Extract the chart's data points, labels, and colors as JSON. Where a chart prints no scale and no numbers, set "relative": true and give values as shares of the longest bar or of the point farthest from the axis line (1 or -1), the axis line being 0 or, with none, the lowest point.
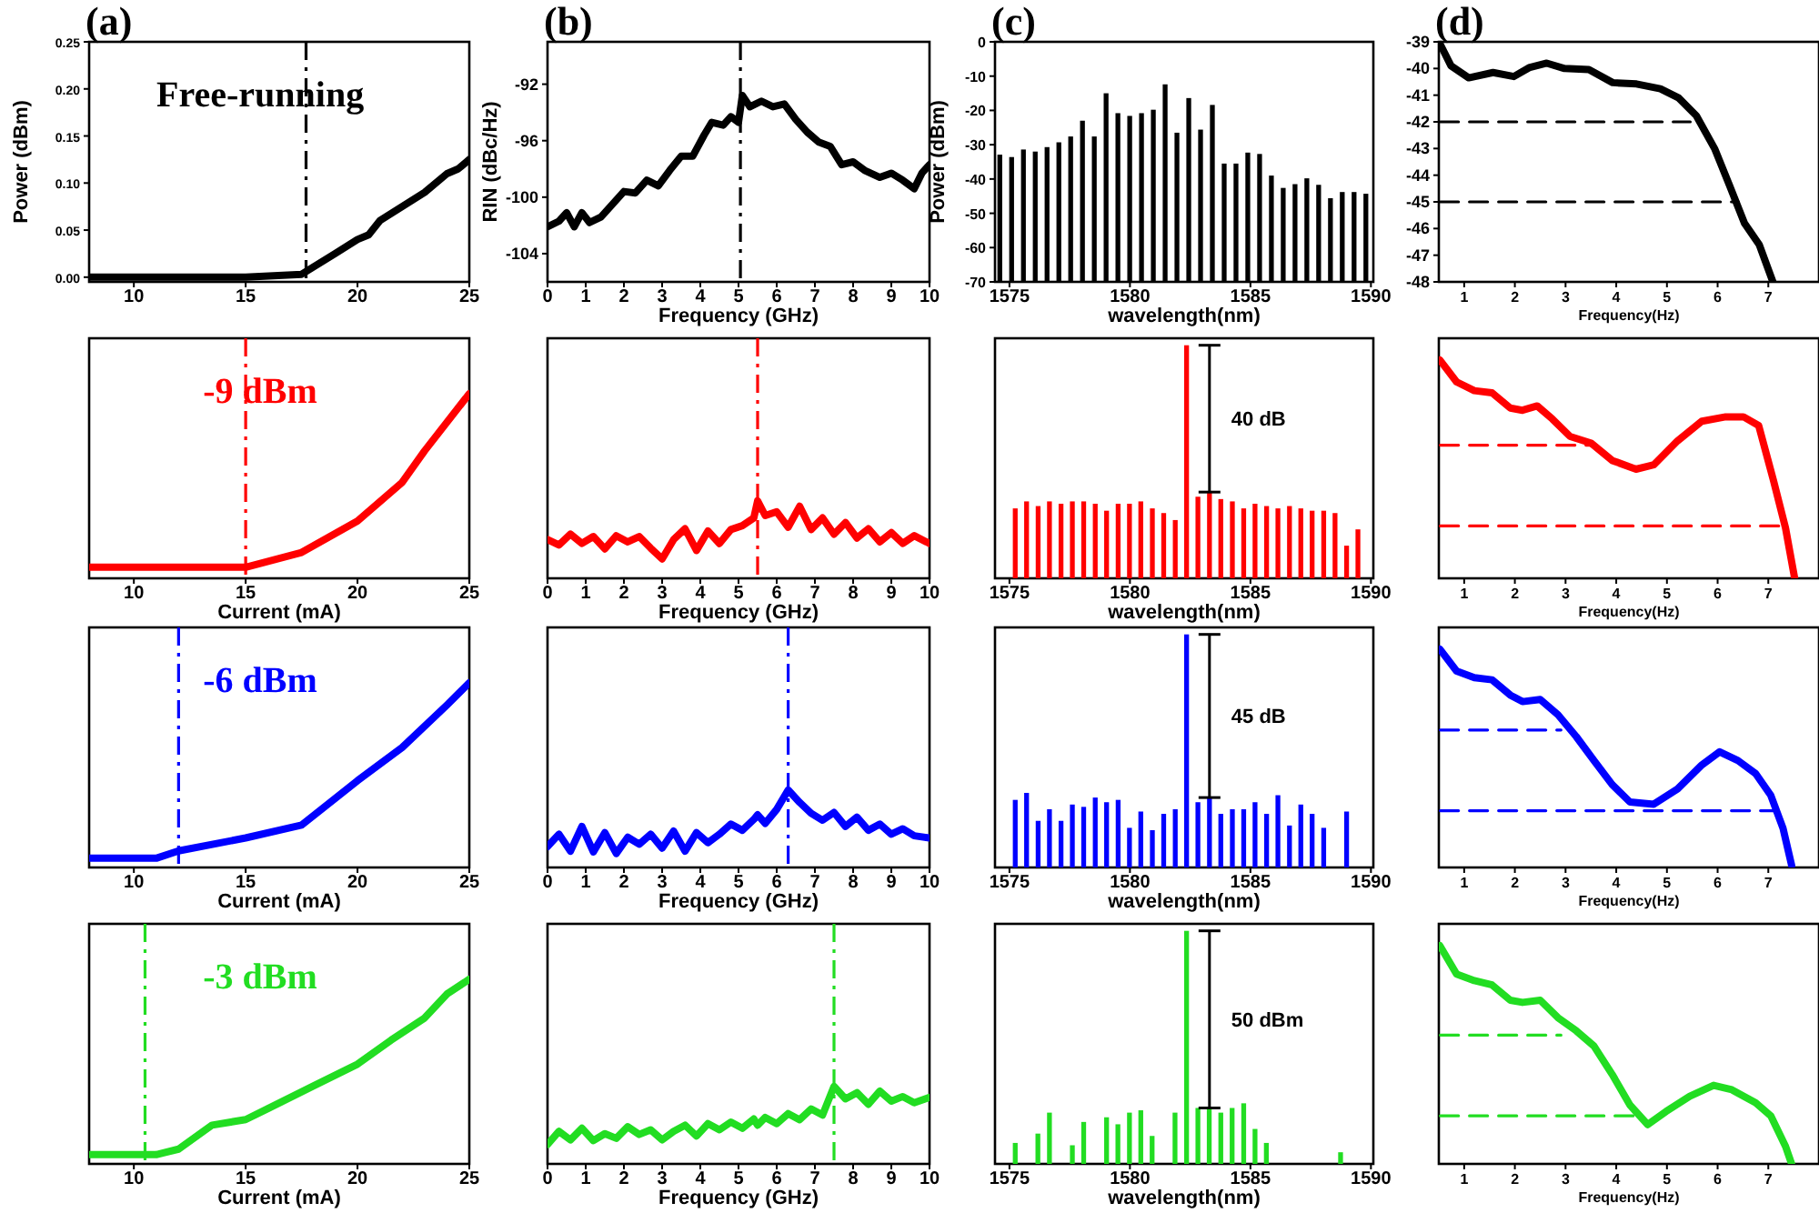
{
  "chart_data": [
    {
      "type": "line",
      "title": "(a)",
      "ylabel": "Power (dBm)",
      "xlim": [
        8,
        25
      ],
      "xticks": [
        10,
        15,
        20,
        25
      ],
      "ylim": [
        -0.005,
        0.25
      ],
      "yticks": [
        {
          "value": 0,
          "label": "0.00"
        },
        {
          "value": 0.05,
          "label": "0.05"
        },
        {
          "value": 0.1,
          "label": "0.10"
        },
        {
          "value": 0.15,
          "label": "0.15"
        },
        {
          "value": 0.2,
          "label": "0.20"
        },
        {
          "value": 0.25,
          "label": "0.25"
        }
      ],
      "annotations": [
        "Free-running"
      ],
      "ref_lines": [
        {
          "axis": "x",
          "value": 17.7,
          "color": "#000000",
          "line_style": "dashdot"
        }
      ],
      "series": [
        {
          "color": "#000000",
          "x": [
            8,
            12,
            15,
            17.5,
            19,
            20,
            20.5,
            21,
            22,
            23,
            24,
            24.5,
            25
          ],
          "values": [
            0,
            0,
            0,
            0.003,
            0.025,
            0.04,
            0.045,
            0.06,
            0.075,
            0.09,
            0.11,
            0.115,
            0.125
          ]
        }
      ]
    },
    {
      "type": "line",
      "title": "(b)",
      "ylabel": "RIN (dBc/Hz)",
      "xlabel": "Frequency (GHz)",
      "xlim": [
        0,
        10
      ],
      "xticks": [
        0,
        1,
        2,
        3,
        4,
        5,
        6,
        7,
        8,
        9,
        10
      ],
      "ylim": [
        -106,
        -89
      ],
      "yticks": [
        -92,
        -96,
        -100,
        -104
      ],
      "ref_lines": [
        {
          "axis": "x",
          "value": 5.05,
          "color": "#000000",
          "line_style": "dashdot"
        }
      ],
      "series": [
        {
          "color": "#000000",
          "x": [
            0,
            0.3,
            0.5,
            0.7,
            0.9,
            1.1,
            1.4,
            1.7,
            2,
            2.3,
            2.6,
            2.9,
            3.2,
            3.5,
            3.8,
            4.1,
            4.3,
            4.6,
            4.8,
            5,
            5.1,
            5.3,
            5.6,
            5.9,
            6.2,
            6.5,
            6.8,
            7.1,
            7.4,
            7.7,
            8,
            8.3,
            8.7,
            9,
            9.3,
            9.6,
            9.8,
            10
          ],
          "values": [
            -102.1,
            -101.7,
            -101.1,
            -102.1,
            -101.1,
            -101.8,
            -101.4,
            -100.5,
            -99.6,
            -99.7,
            -98.8,
            -99.2,
            -98.1,
            -97.1,
            -97.1,
            -95.6,
            -94.7,
            -94.9,
            -94.3,
            -94.7,
            -92.8,
            -93.6,
            -93.2,
            -93.6,
            -93.4,
            -94.5,
            -95.4,
            -96.1,
            -96.4,
            -97.7,
            -97.5,
            -98.1,
            -98.6,
            -98.3,
            -98.8,
            -99.4,
            -98.3,
            -97.7
          ]
        }
      ]
    },
    {
      "type": "bar",
      "title": "(c)",
      "ylabel": "Power (dBm)",
      "xlabel": "wavelength(nm)",
      "xlim": [
        1574.4,
        1590.1
      ],
      "xticks": [
        1575,
        1580,
        1585,
        1590
      ],
      "ylim": [
        -70,
        0
      ],
      "yticks": [
        0,
        -10,
        -20,
        -30,
        -40,
        -50,
        -60,
        -70
      ],
      "series": [
        {
          "color": "#000000",
          "x": [
            1574.6,
            1575.09,
            1575.58,
            1576.07,
            1576.56,
            1577.05,
            1577.54,
            1578.03,
            1578.52,
            1579.01,
            1579.5,
            1579.99,
            1580.48,
            1580.97,
            1581.46,
            1581.95,
            1582.44,
            1582.93,
            1583.42,
            1583.91,
            1584.4,
            1584.89,
            1585.38,
            1585.87,
            1586.36,
            1586.85,
            1587.34,
            1587.83,
            1588.32,
            1588.81,
            1589.3,
            1589.79
          ],
          "base": [
            -70,
            -70,
            -70,
            -70,
            -70,
            -70,
            -70,
            -70,
            -70,
            -70,
            -70,
            -70,
            -70,
            -70,
            -70,
            -70,
            -70,
            -70,
            -70,
            -70,
            -70,
            -70,
            -70,
            -70,
            -70,
            -70,
            -70,
            -70,
            -70,
            -70,
            -70,
            -70
          ],
          "values": [
            37.1,
            36.4,
            38.6,
            38,
            39.3,
            40.7,
            42.4,
            47,
            42.4,
            55,
            49.2,
            48.4,
            49.2,
            50.2,
            57.6,
            43.5,
            53.6,
            44.4,
            51.6,
            34.5,
            34.5,
            37.7,
            37.3,
            31,
            27.4,
            28.5,
            30.2,
            28.3,
            24.4,
            26.2,
            26.2,
            25.7
          ]
        }
      ]
    },
    {
      "type": "line",
      "title": "(d)",
      "xlabel": "Frequency(Hz)",
      "xlim": [
        0.5,
        8
      ],
      "xticks": [
        1,
        2,
        3,
        4,
        5,
        6,
        7
      ],
      "ylim": [
        -48,
        -39
      ],
      "yticks": [
        -39,
        -40,
        -41,
        -42,
        -43,
        -44,
        -45,
        -46,
        -47,
        -48
      ],
      "series": [
        {
          "color": "#000000",
          "x": [
            0.53,
            0.74,
            1.09,
            1.57,
            1.98,
            2.28,
            2.63,
            2.98,
            3.46,
            3.93,
            4.4,
            4.87,
            5.23,
            5.58,
            5.94,
            6.23,
            6.53,
            6.82,
            7.09
          ],
          "values": [
            -39.1,
            -39.9,
            -40.35,
            -40.15,
            -40.3,
            -39.97,
            -39.8,
            -40,
            -40.04,
            -40.53,
            -40.58,
            -40.76,
            -41.1,
            -41.77,
            -43,
            -44.36,
            -45.8,
            -46.6,
            -48
          ]
        },
        {
          "color": "#000000",
          "line_style": "dashed",
          "x": [
            0.53,
            5.46
          ],
          "values": [
            -42,
            -42
          ]
        },
        {
          "color": "#000000",
          "line_style": "dashed",
          "x": [
            0.53,
            6.41
          ],
          "values": [
            -45,
            -45
          ]
        }
      ]
    },
    {
      "type": "line",
      "relative": true,
      "xlabel": "Current (mA)",
      "xlim": [
        8,
        25
      ],
      "xticks": [
        10,
        15,
        20,
        25
      ],
      "tick_labels": "x",
      "annotations": [
        "-9 dBm"
      ],
      "ref_lines": [
        {
          "axis": "x",
          "value": 15,
          "color": "#ff0000",
          "line_style": "dashdot"
        }
      ],
      "series": [
        {
          "color": "#ff0000",
          "x": [
            8,
            12,
            15,
            17.5,
            20,
            22,
            23,
            25
          ],
          "values": [
            0.06,
            0.06,
            0.06,
            0.14,
            0.31,
            0.52,
            0.69,
            1
          ]
        }
      ]
    },
    {
      "type": "line",
      "relative": true,
      "xlabel": "Frequency (GHz)",
      "xlim": [
        0,
        10
      ],
      "xticks": [
        0,
        1,
        2,
        3,
        4,
        5,
        6,
        7,
        8,
        9,
        10
      ],
      "tick_labels": "x",
      "ref_lines": [
        {
          "axis": "x",
          "value": 5.5,
          "color": "#ff0000",
          "line_style": "dashdot"
        }
      ],
      "series": [
        {
          "color": "#ff0000",
          "x": [
            0,
            0.3,
            0.6,
            0.9,
            1.2,
            1.5,
            1.8,
            2.1,
            2.4,
            2.7,
            3,
            3.3,
            3.6,
            3.9,
            4.2,
            4.5,
            4.8,
            5.1,
            5.4,
            5.5,
            5.7,
            6,
            6.3,
            6.6,
            6.9,
            7.2,
            7.5,
            7.8,
            8.1,
            8.4,
            8.7,
            9,
            9.3,
            9.6,
            10
          ],
          "values": [
            0.5,
            0.43,
            0.57,
            0.45,
            0.54,
            0.38,
            0.55,
            0.47,
            0.54,
            0.39,
            0.25,
            0.5,
            0.64,
            0.36,
            0.61,
            0.45,
            0.63,
            0.68,
            0.78,
            1,
            0.81,
            0.86,
            0.66,
            0.93,
            0.63,
            0.78,
            0.57,
            0.72,
            0.52,
            0.64,
            0.47,
            0.59,
            0.45,
            0.55,
            0.45
          ]
        }
      ]
    },
    {
      "type": "bar",
      "relative": true,
      "xlabel": "wavelength(nm)",
      "xlim": [
        1574.4,
        1590.1
      ],
      "xticks": [
        1575,
        1580,
        1585,
        1590
      ],
      "tick_labels": "x",
      "annotations": [
        "40 dB"
      ],
      "series": [
        {
          "color": "#ff0000",
          "x": [
            1575.24,
            1575.71,
            1576.19,
            1576.66,
            1577.14,
            1577.61,
            1578.08,
            1578.56,
            1579.03,
            1579.51,
            1579.98,
            1580.45,
            1580.93,
            1581.4,
            1581.88,
            1582.35,
            1582.82,
            1583.3,
            1583.77,
            1584.25,
            1584.72,
            1585.19,
            1585.67,
            1586.14,
            1586.62,
            1587.09,
            1587.56,
            1588.04,
            1588.51,
            1588.99,
            1589.46
          ],
          "values": [
            0.3,
            0.33,
            0.31,
            0.33,
            0.32,
            0.33,
            0.33,
            0.32,
            0.29,
            0.32,
            0.32,
            0.33,
            0.3,
            0.28,
            0.25,
            1,
            0.35,
            0.37,
            0.34,
            0.33,
            0.3,
            0.32,
            0.31,
            0.3,
            0.31,
            0.3,
            0.29,
            0.29,
            0.28,
            0.14,
            0.21
          ]
        }
      ]
    },
    {
      "type": "line",
      "relative": true,
      "xlabel": "Frequency(Hz)",
      "xlim": [
        0.5,
        8
      ],
      "xticks": [
        1,
        2,
        3,
        4,
        5,
        6,
        7
      ],
      "tick_labels": "x",
      "series": [
        {
          "color": "#ff0000",
          "x": [
            0.52,
            0.85,
            1.2,
            1.55,
            1.91,
            2.15,
            2.44,
            2.74,
            3.09,
            3.5,
            3.92,
            4.39,
            4.74,
            5.21,
            5.69,
            6.16,
            6.51,
            6.81,
            7.1,
            7.34,
            7.52
          ],
          "values": [
            1,
            0.9,
            0.86,
            0.85,
            0.78,
            0.77,
            0.79,
            0.73,
            0.65,
            0.62,
            0.54,
            0.5,
            0.52,
            0.63,
            0.72,
            0.74,
            0.74,
            0.7,
            0.45,
            0.23,
            0
          ]
        },
        {
          "color": "#ff0000",
          "line_style": "dashed",
          "x": [
            0.53,
            3.56
          ],
          "values": [
            0.61,
            0.61
          ]
        },
        {
          "color": "#ff0000",
          "line_style": "dashed",
          "x": [
            0.53,
            7.28
          ],
          "values": [
            0.24,
            0.24
          ]
        }
      ]
    },
    {
      "type": "line",
      "relative": true,
      "xlabel": "Current (mA)",
      "xlim": [
        8,
        25
      ],
      "xticks": [
        10,
        15,
        20,
        25
      ],
      "tick_labels": "x",
      "annotations": [
        "-6 dBm"
      ],
      "ref_lines": [
        {
          "axis": "x",
          "value": 12,
          "color": "#0000ff",
          "line_style": "dashdot"
        }
      ],
      "series": [
        {
          "color": "#0000ff",
          "x": [
            8,
            11,
            12,
            15,
            17.5,
            20,
            22,
            24,
            25
          ],
          "values": [
            0.05,
            0.05,
            0.09,
            0.16,
            0.23,
            0.47,
            0.65,
            0.88,
            1
          ]
        }
      ]
    },
    {
      "type": "line",
      "relative": true,
      "xlabel": "Frequency (GHz)",
      "xlim": [
        0,
        10
      ],
      "xticks": [
        0,
        1,
        2,
        3,
        4,
        5,
        6,
        7,
        8,
        9,
        10
      ],
      "tick_labels": "x",
      "ref_lines": [
        {
          "axis": "x",
          "value": 6.3,
          "color": "#0000ff",
          "line_style": "dashdot"
        }
      ],
      "series": [
        {
          "color": "#0000ff",
          "x": [
            0,
            0.3,
            0.6,
            0.9,
            1.2,
            1.5,
            1.8,
            2.1,
            2.4,
            2.7,
            3,
            3.3,
            3.6,
            3.9,
            4.2,
            4.5,
            4.8,
            5.1,
            5.4,
            5.5,
            5.7,
            6,
            6.3,
            6.6,
            6.9,
            7.2,
            7.5,
            7.8,
            8.1,
            8.4,
            8.7,
            9,
            9.3,
            9.6,
            10
          ],
          "values": [
            0.27,
            0.43,
            0.21,
            0.53,
            0.2,
            0.45,
            0.18,
            0.39,
            0.3,
            0.43,
            0.25,
            0.47,
            0.21,
            0.45,
            0.32,
            0.43,
            0.56,
            0.48,
            0.62,
            0.68,
            0.57,
            0.75,
            1,
            0.84,
            0.7,
            0.61,
            0.71,
            0.53,
            0.65,
            0.48,
            0.56,
            0.43,
            0.5,
            0.41,
            0.38
          ]
        }
      ]
    },
    {
      "type": "bar",
      "relative": true,
      "xlabel": "wavelength(nm)",
      "xlim": [
        1574.4,
        1590.1
      ],
      "xticks": [
        1575,
        1580,
        1585,
        1590
      ],
      "tick_labels": "x",
      "annotations": [
        "45 dB"
      ],
      "series": [
        {
          "color": "#0000ff",
          "x": [
            1575.24,
            1575.71,
            1576.19,
            1576.66,
            1577.14,
            1577.61,
            1578.08,
            1578.56,
            1579.03,
            1579.51,
            1579.98,
            1580.45,
            1580.93,
            1581.4,
            1581.88,
            1582.35,
            1582.82,
            1583.3,
            1583.77,
            1584.25,
            1584.72,
            1585.19,
            1585.67,
            1586.14,
            1586.62,
            1587.09,
            1587.56,
            1588.04,
            1588.99
          ],
          "values": [
            0.29,
            0.32,
            0.2,
            0.25,
            0.2,
            0.27,
            0.26,
            0.3,
            0.28,
            0.29,
            0.17,
            0.24,
            0.16,
            0.23,
            0.25,
            1,
            0.28,
            0.3,
            0.23,
            0.25,
            0.25,
            0.28,
            0.23,
            0.31,
            0.18,
            0.27,
            0.23,
            0.17,
            0.24
          ]
        }
      ]
    },
    {
      "type": "line",
      "relative": true,
      "xlabel": "Frequency(Hz)",
      "xlim": [
        0.5,
        8
      ],
      "xticks": [
        1,
        2,
        3,
        4,
        5,
        6,
        7
      ],
      "tick_labels": "x",
      "series": [
        {
          "color": "#0000ff",
          "x": [
            0.52,
            0.85,
            1.2,
            1.55,
            1.91,
            2.15,
            2.5,
            2.85,
            3.21,
            3.56,
            3.92,
            4.27,
            4.74,
            5.21,
            5.69,
            6.04,
            6.4,
            6.75,
            7.05,
            7.29,
            7.46
          ],
          "values": [
            1,
            0.9,
            0.87,
            0.86,
            0.79,
            0.76,
            0.77,
            0.7,
            0.6,
            0.49,
            0.38,
            0.3,
            0.29,
            0.36,
            0.47,
            0.53,
            0.49,
            0.43,
            0.33,
            0.18,
            0.01
          ]
        },
        {
          "color": "#0000ff",
          "line_style": "dashed",
          "x": [
            0.53,
            2.91
          ],
          "values": [
            0.63,
            0.63
          ]
        },
        {
          "color": "#0000ff",
          "line_style": "dashed",
          "x": [
            0.53,
            7.16
          ],
          "values": [
            0.26,
            0.26
          ]
        }
      ]
    },
    {
      "type": "line",
      "relative": true,
      "xlabel": "Current (mA)",
      "xlim": [
        8,
        25
      ],
      "xticks": [
        10,
        15,
        20,
        25
      ],
      "tick_labels": "x",
      "annotations": [
        "-3 dBm"
      ],
      "ref_lines": [
        {
          "axis": "x",
          "value": 10.5,
          "color": "#22dd22",
          "line_style": "dashdot"
        }
      ],
      "series": [
        {
          "color": "#22dd22",
          "x": [
            8,
            11,
            12,
            13.5,
            15,
            16,
            18,
            20,
            21.5,
            23,
            24,
            25
          ],
          "values": [
            0.05,
            0.05,
            0.08,
            0.21,
            0.24,
            0.3,
            0.42,
            0.54,
            0.67,
            0.79,
            0.92,
            1
          ]
        }
      ]
    },
    {
      "type": "line",
      "relative": true,
      "xlabel": "Frequency (GHz)",
      "xlim": [
        0,
        10
      ],
      "xticks": [
        0,
        1,
        2,
        3,
        4,
        5,
        6,
        7,
        8,
        9,
        10
      ],
      "tick_labels": "x",
      "ref_lines": [
        {
          "axis": "x",
          "value": 7.5,
          "color": "#22dd22",
          "line_style": "dashdot"
        }
      ],
      "series": [
        {
          "color": "#22dd22",
          "x": [
            0,
            0.3,
            0.6,
            0.9,
            1.2,
            1.5,
            1.8,
            2.1,
            2.4,
            2.7,
            3,
            3.3,
            3.6,
            3.9,
            4.2,
            4.5,
            4.8,
            5.1,
            5.4,
            5.5,
            5.7,
            6,
            6.3,
            6.6,
            6.9,
            7.2,
            7.5,
            7.8,
            8.1,
            8.4,
            8.7,
            9,
            9.3,
            9.6,
            10
          ],
          "values": [
            0.25,
            0.42,
            0.31,
            0.46,
            0.3,
            0.39,
            0.33,
            0.48,
            0.38,
            0.44,
            0.31,
            0.42,
            0.5,
            0.36,
            0.52,
            0.44,
            0.54,
            0.46,
            0.58,
            0.5,
            0.6,
            0.52,
            0.65,
            0.57,
            0.71,
            0.63,
            1,
            0.84,
            0.92,
            0.77,
            0.94,
            0.81,
            0.87,
            0.79,
            0.86
          ]
        }
      ]
    },
    {
      "type": "bar",
      "relative": true,
      "xlabel": "wavelength(nm)",
      "xlim": [
        1574.4,
        1590.1
      ],
      "xticks": [
        1575,
        1580,
        1585,
        1590
      ],
      "tick_labels": "x",
      "annotations": [
        "50 dBm"
      ],
      "series": [
        {
          "color": "#22dd22",
          "x": [
            1575.24,
            1576.18,
            1576.66,
            1577.61,
            1578.08,
            1579.03,
            1579.5,
            1579.98,
            1580.45,
            1580.92,
            1581.87,
            1582.35,
            1582.82,
            1583.29,
            1583.77,
            1584.24,
            1584.72,
            1585.19,
            1585.66,
            1588.74
          ],
          "values": [
            0.09,
            0.13,
            0.22,
            0.08,
            0.18,
            0.2,
            0.17,
            0.22,
            0.23,
            0.12,
            0.22,
            1,
            0.24,
            0.24,
            0.22,
            0.24,
            0.26,
            0.15,
            0.09,
            0.05
          ]
        }
      ]
    },
    {
      "type": "line",
      "relative": true,
      "xlabel": "Frequency(Hz)",
      "xlim": [
        0.5,
        8
      ],
      "xticks": [
        1,
        2,
        3,
        4,
        5,
        6,
        7
      ],
      "tick_labels": "x",
      "series": [
        {
          "color": "#22dd22",
          "x": [
            0.52,
            0.85,
            1.2,
            1.55,
            1.91,
            2.15,
            2.5,
            2.85,
            3.21,
            3.56,
            3.92,
            4.27,
            4.62,
            4.98,
            5.45,
            5.92,
            6.28,
            6.75,
            7.05,
            7.34,
            7.46
          ],
          "values": [
            1,
            0.87,
            0.84,
            0.82,
            0.75,
            0.74,
            0.75,
            0.67,
            0.61,
            0.54,
            0.41,
            0.27,
            0.18,
            0.24,
            0.31,
            0.36,
            0.34,
            0.28,
            0.22,
            0.08,
            0
          ]
        },
        {
          "color": "#22dd22",
          "line_style": "dashed",
          "x": [
            0.53,
            2.91
          ],
          "values": [
            0.59,
            0.59
          ]
        },
        {
          "color": "#22dd22",
          "line_style": "dashed",
          "x": [
            0.53,
            4.4
          ],
          "values": [
            0.22,
            0.22
          ]
        }
      ]
    }
  ]
}
